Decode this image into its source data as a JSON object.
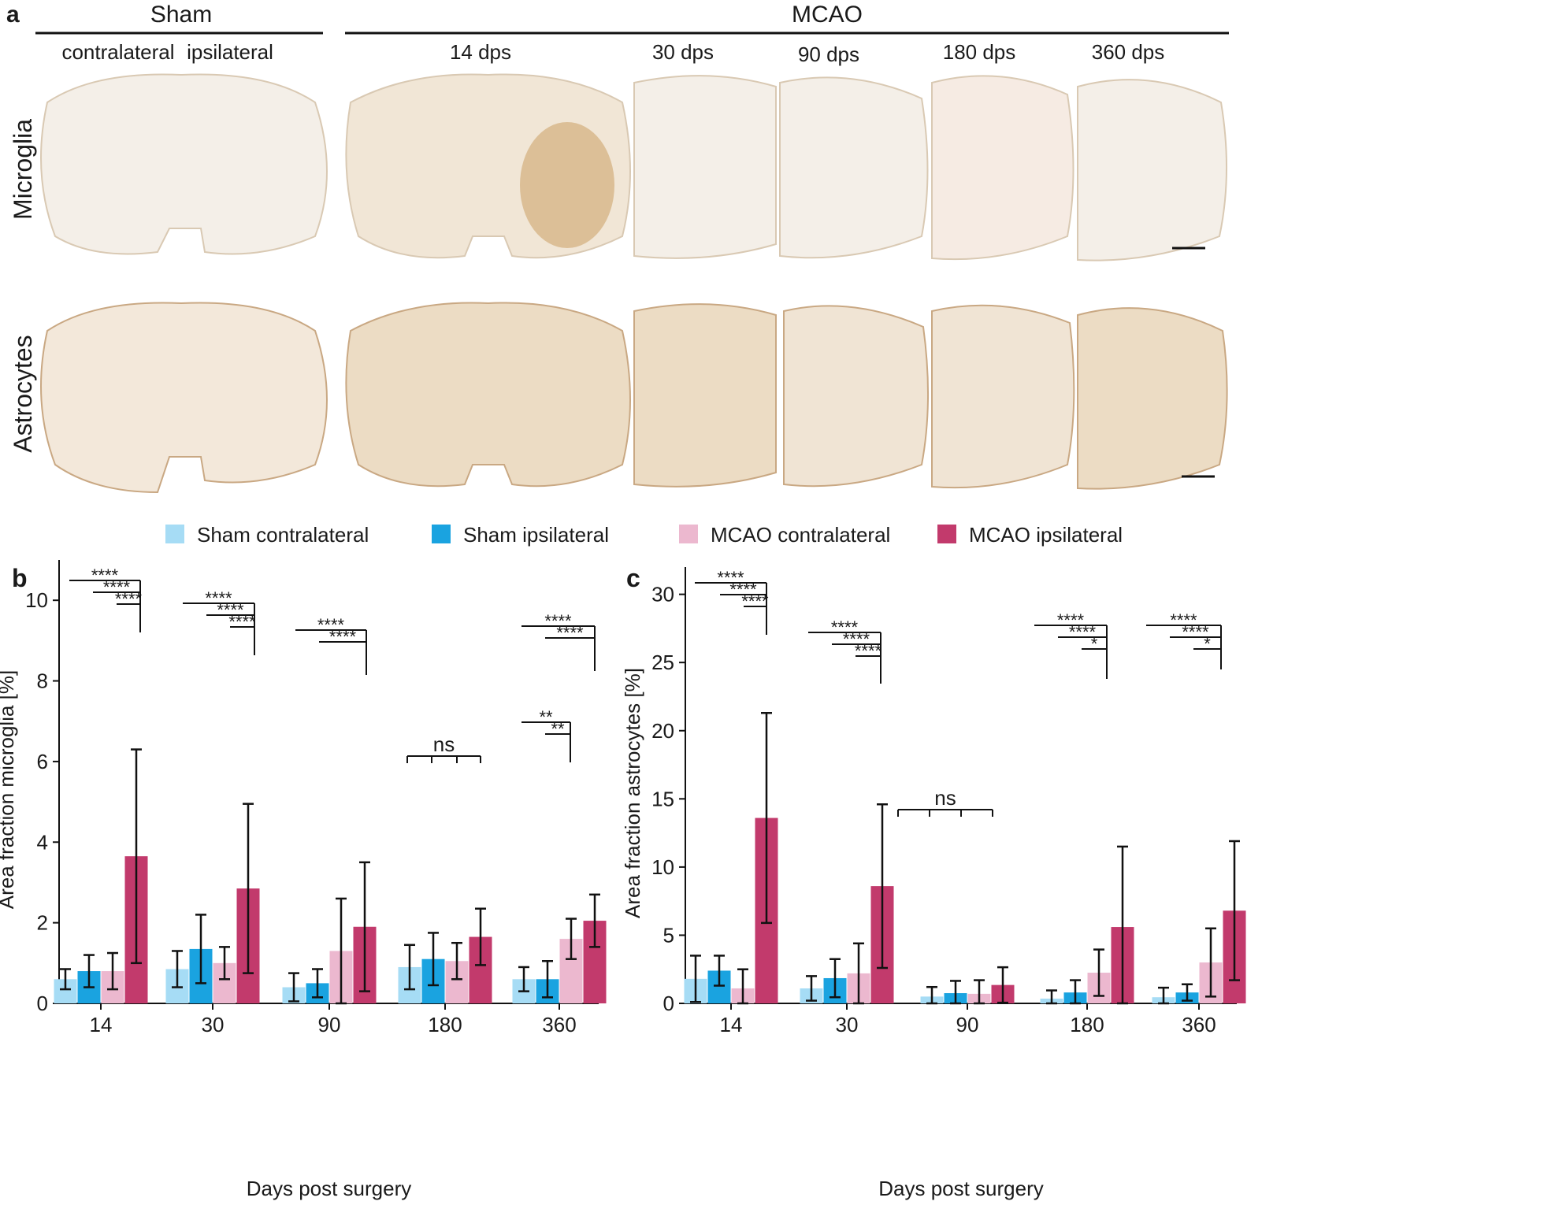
{
  "figure": {
    "panel_label": "a",
    "sham": "Sham",
    "mcao": "MCAO",
    "contralateral": "contralateral",
    "ipsilateral": "ipsilateral",
    "timepoints": [
      "14 dps",
      "30 dps",
      "90 dps",
      "180 dps",
      "360 dps"
    ],
    "rows": [
      "Microglia",
      "Astrocytes"
    ]
  },
  "legend": [
    {
      "name": "Sham contralateral",
      "color": "#a6dcf5"
    },
    {
      "name": "Sham ipsilateral",
      "color": "#1aa3e0"
    },
    {
      "name": "MCAO contralateral",
      "color": "#ecb8cf"
    },
    {
      "name": "MCAO ipsilateral",
      "color": "#c23a6c"
    }
  ],
  "chart_data": [
    {
      "type": "bar",
      "panel_label": "b",
      "x_label": "Days post surgery",
      "y_label": "Area fraction microglia [%]",
      "categories": [
        "14",
        "30",
        "90",
        "180",
        "360"
      ],
      "series": [
        {
          "values": [
            0.6,
            0.85,
            0.4,
            0.9,
            0.6
          ],
          "errors": [
            0.25,
            0.45,
            0.35,
            0.55,
            0.3
          ]
        },
        {
          "values": [
            0.8,
            1.35,
            0.5,
            1.1,
            0.6
          ],
          "errors": [
            0.4,
            0.85,
            0.35,
            0.65,
            0.45
          ]
        },
        {
          "values": [
            0.8,
            1.0,
            1.3,
            1.05,
            1.6
          ],
          "errors": [
            0.45,
            0.4,
            1.3,
            0.45,
            0.5
          ]
        },
        {
          "values": [
            3.65,
            2.85,
            1.9,
            1.65,
            2.05
          ],
          "errors": [
            2.65,
            2.1,
            1.6,
            0.7,
            0.65
          ]
        }
      ],
      "ylim": [
        0,
        11
      ],
      "yticks": [
        0,
        2,
        4,
        6,
        8,
        10
      ],
      "annotations": [
        "****",
        "****",
        "****",
        "****",
        "****",
        "****",
        "****",
        "****",
        "ns",
        "****",
        "****",
        "**",
        "**"
      ]
    },
    {
      "type": "bar",
      "panel_label": "c",
      "x_label": "Days post surgery",
      "y_label": "Area fraction astrocytes [%]",
      "categories": [
        "14",
        "30",
        "90",
        "180",
        "360"
      ],
      "series": [
        {
          "values": [
            1.8,
            1.1,
            0.5,
            0.35,
            0.45
          ],
          "errors": [
            1.7,
            0.9,
            0.7,
            0.6,
            0.7
          ]
        },
        {
          "values": [
            2.4,
            1.85,
            0.75,
            0.8,
            0.8
          ],
          "errors": [
            1.1,
            1.4,
            0.9,
            0.9,
            0.6
          ]
        },
        {
          "values": [
            1.1,
            2.2,
            0.7,
            2.25,
            3.0
          ],
          "errors": [
            1.4,
            2.2,
            1.0,
            1.7,
            2.5
          ]
        },
        {
          "values": [
            13.6,
            8.6,
            1.35,
            5.6,
            6.8
          ],
          "errors": [
            7.7,
            6.0,
            1.3,
            5.9,
            5.1
          ]
        }
      ],
      "ylim": [
        0,
        32
      ],
      "yticks": [
        0,
        5,
        10,
        15,
        20,
        25,
        30
      ],
      "annotations": [
        "****",
        "****",
        "****",
        "****",
        "****",
        "****",
        "ns",
        "****",
        "****",
        "*",
        "****",
        "****",
        "*"
      ]
    }
  ]
}
